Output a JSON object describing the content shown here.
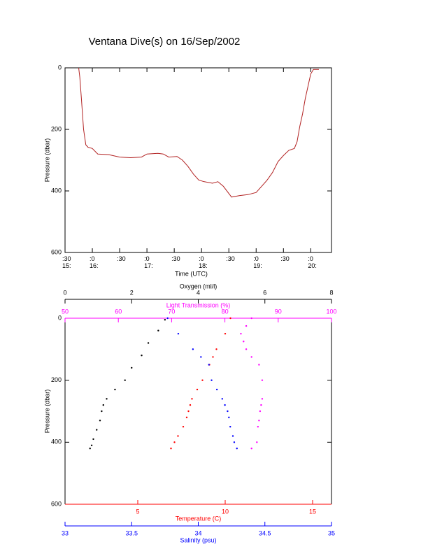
{
  "chart_data": [
    {
      "type": "line",
      "title": "Ventana Dive(s) on 16/Sep/2002",
      "xlabel": "Time (UTC)",
      "ylabel": "Pressure (dbar)",
      "color": "#b22222",
      "y_inverted": true,
      "xlim": [
        15.5,
        20.38
      ],
      "xticks": [
        {
          "value": 15.5,
          "label": ":30\n15:"
        },
        {
          "value": 16.0,
          "label": ":0\n16:"
        },
        {
          "value": 16.5,
          "label": ":30"
        },
        {
          "value": 17.0,
          "label": ":0\n17:"
        },
        {
          "value": 17.5,
          "label": ":30"
        },
        {
          "value": 18.0,
          "label": ":0\n18:"
        },
        {
          "value": 18.5,
          "label": ":30"
        },
        {
          "value": 19.0,
          "label": ":0\n19:"
        },
        {
          "value": 19.5,
          "label": ":30"
        },
        {
          "value": 20.0,
          "label": ":0\n20:"
        }
      ],
      "ylim": [
        0,
        600
      ],
      "yticks": [
        0,
        200,
        400,
        600
      ],
      "x": [
        15.75,
        15.77,
        15.8,
        15.84,
        15.88,
        15.92,
        16.0,
        16.1,
        16.3,
        16.5,
        16.7,
        16.9,
        17.0,
        17.2,
        17.3,
        17.4,
        17.55,
        17.65,
        17.75,
        17.85,
        17.95,
        18.05,
        18.2,
        18.3,
        18.4,
        18.55,
        18.7,
        18.85,
        19.0,
        19.1,
        19.2,
        19.3,
        19.4,
        19.5,
        19.6,
        19.7,
        19.75,
        19.8,
        19.85,
        19.9,
        19.95,
        20.0,
        20.05,
        20.15
      ],
      "values": [
        0,
        30,
        100,
        200,
        250,
        258,
        262,
        280,
        282,
        290,
        292,
        290,
        280,
        278,
        280,
        290,
        288,
        300,
        320,
        345,
        365,
        370,
        375,
        370,
        385,
        420,
        415,
        412,
        405,
        385,
        365,
        340,
        305,
        285,
        268,
        262,
        240,
        190,
        150,
        100,
        60,
        20,
        5,
        5
      ]
    },
    {
      "type": "scatter",
      "ylabel": "Pressure (dbar)",
      "y_inverted": true,
      "ylim": [
        0,
        600
      ],
      "yticks": [
        0,
        200,
        400,
        600
      ],
      "series": [
        {
          "color": "#000000",
          "axis": {
            "label": "Oxygen (ml/l)",
            "side": "top",
            "xlim": [
              0,
              8
            ],
            "xticks": [
              0,
              2,
              4,
              6,
              8
            ]
          },
          "x": [
            3.0,
            2.8,
            2.5,
            2.3,
            2.0,
            1.8,
            1.5,
            1.25,
            1.15,
            1.1,
            1.05,
            0.95,
            0.85,
            0.8,
            0.75
          ],
          "values": [
            5,
            40,
            80,
            120,
            160,
            200,
            230,
            260,
            280,
            300,
            330,
            360,
            390,
            410,
            420
          ]
        },
        {
          "color": "#ff00ff",
          "axis": {
            "label": "Light Transmission (%)",
            "side": "top",
            "xlim": [
              50,
              100
            ],
            "xticks": [
              50,
              60,
              70,
              80,
              90,
              100
            ]
          },
          "x": [
            85,
            84,
            83,
            83.5,
            84,
            85,
            86.4,
            87,
            87,
            86.8,
            86.6,
            86.4,
            86.2,
            86,
            85
          ],
          "values": [
            0,
            25,
            50,
            75,
            100,
            125,
            150,
            200,
            260,
            280,
            300,
            330,
            350,
            400,
            420
          ]
        },
        {
          "color": "#ff0000",
          "axis": {
            "label": "Temperature (C)",
            "side": "bottom",
            "xlim": [
              0.84,
              16.08
            ],
            "xticks": [
              5,
              10,
              15
            ]
          },
          "x": [
            10.3,
            10.0,
            9.5,
            9.3,
            9.1,
            8.7,
            8.4,
            8.1,
            8.0,
            7.9,
            7.8,
            7.6,
            7.3,
            7.1,
            6.9
          ],
          "values": [
            0,
            50,
            100,
            125,
            150,
            200,
            230,
            260,
            280,
            300,
            320,
            350,
            380,
            400,
            420
          ]
        },
        {
          "color": "#0000ff",
          "axis": {
            "label": "Salinity (psu)",
            "side": "bottom",
            "xlim": [
              33.0,
              35.0
            ],
            "xticks": [
              33.0,
              33.5,
              34.0,
              34.5,
              35.0
            ]
          },
          "x": [
            33.77,
            33.85,
            33.96,
            34.02,
            34.08,
            34.1,
            34.14,
            34.18,
            34.2,
            34.22,
            34.23,
            34.24,
            34.26,
            34.27,
            34.29
          ],
          "values": [
            0,
            50,
            100,
            125,
            150,
            200,
            230,
            260,
            280,
            300,
            320,
            350,
            380,
            400,
            420
          ]
        }
      ]
    }
  ]
}
